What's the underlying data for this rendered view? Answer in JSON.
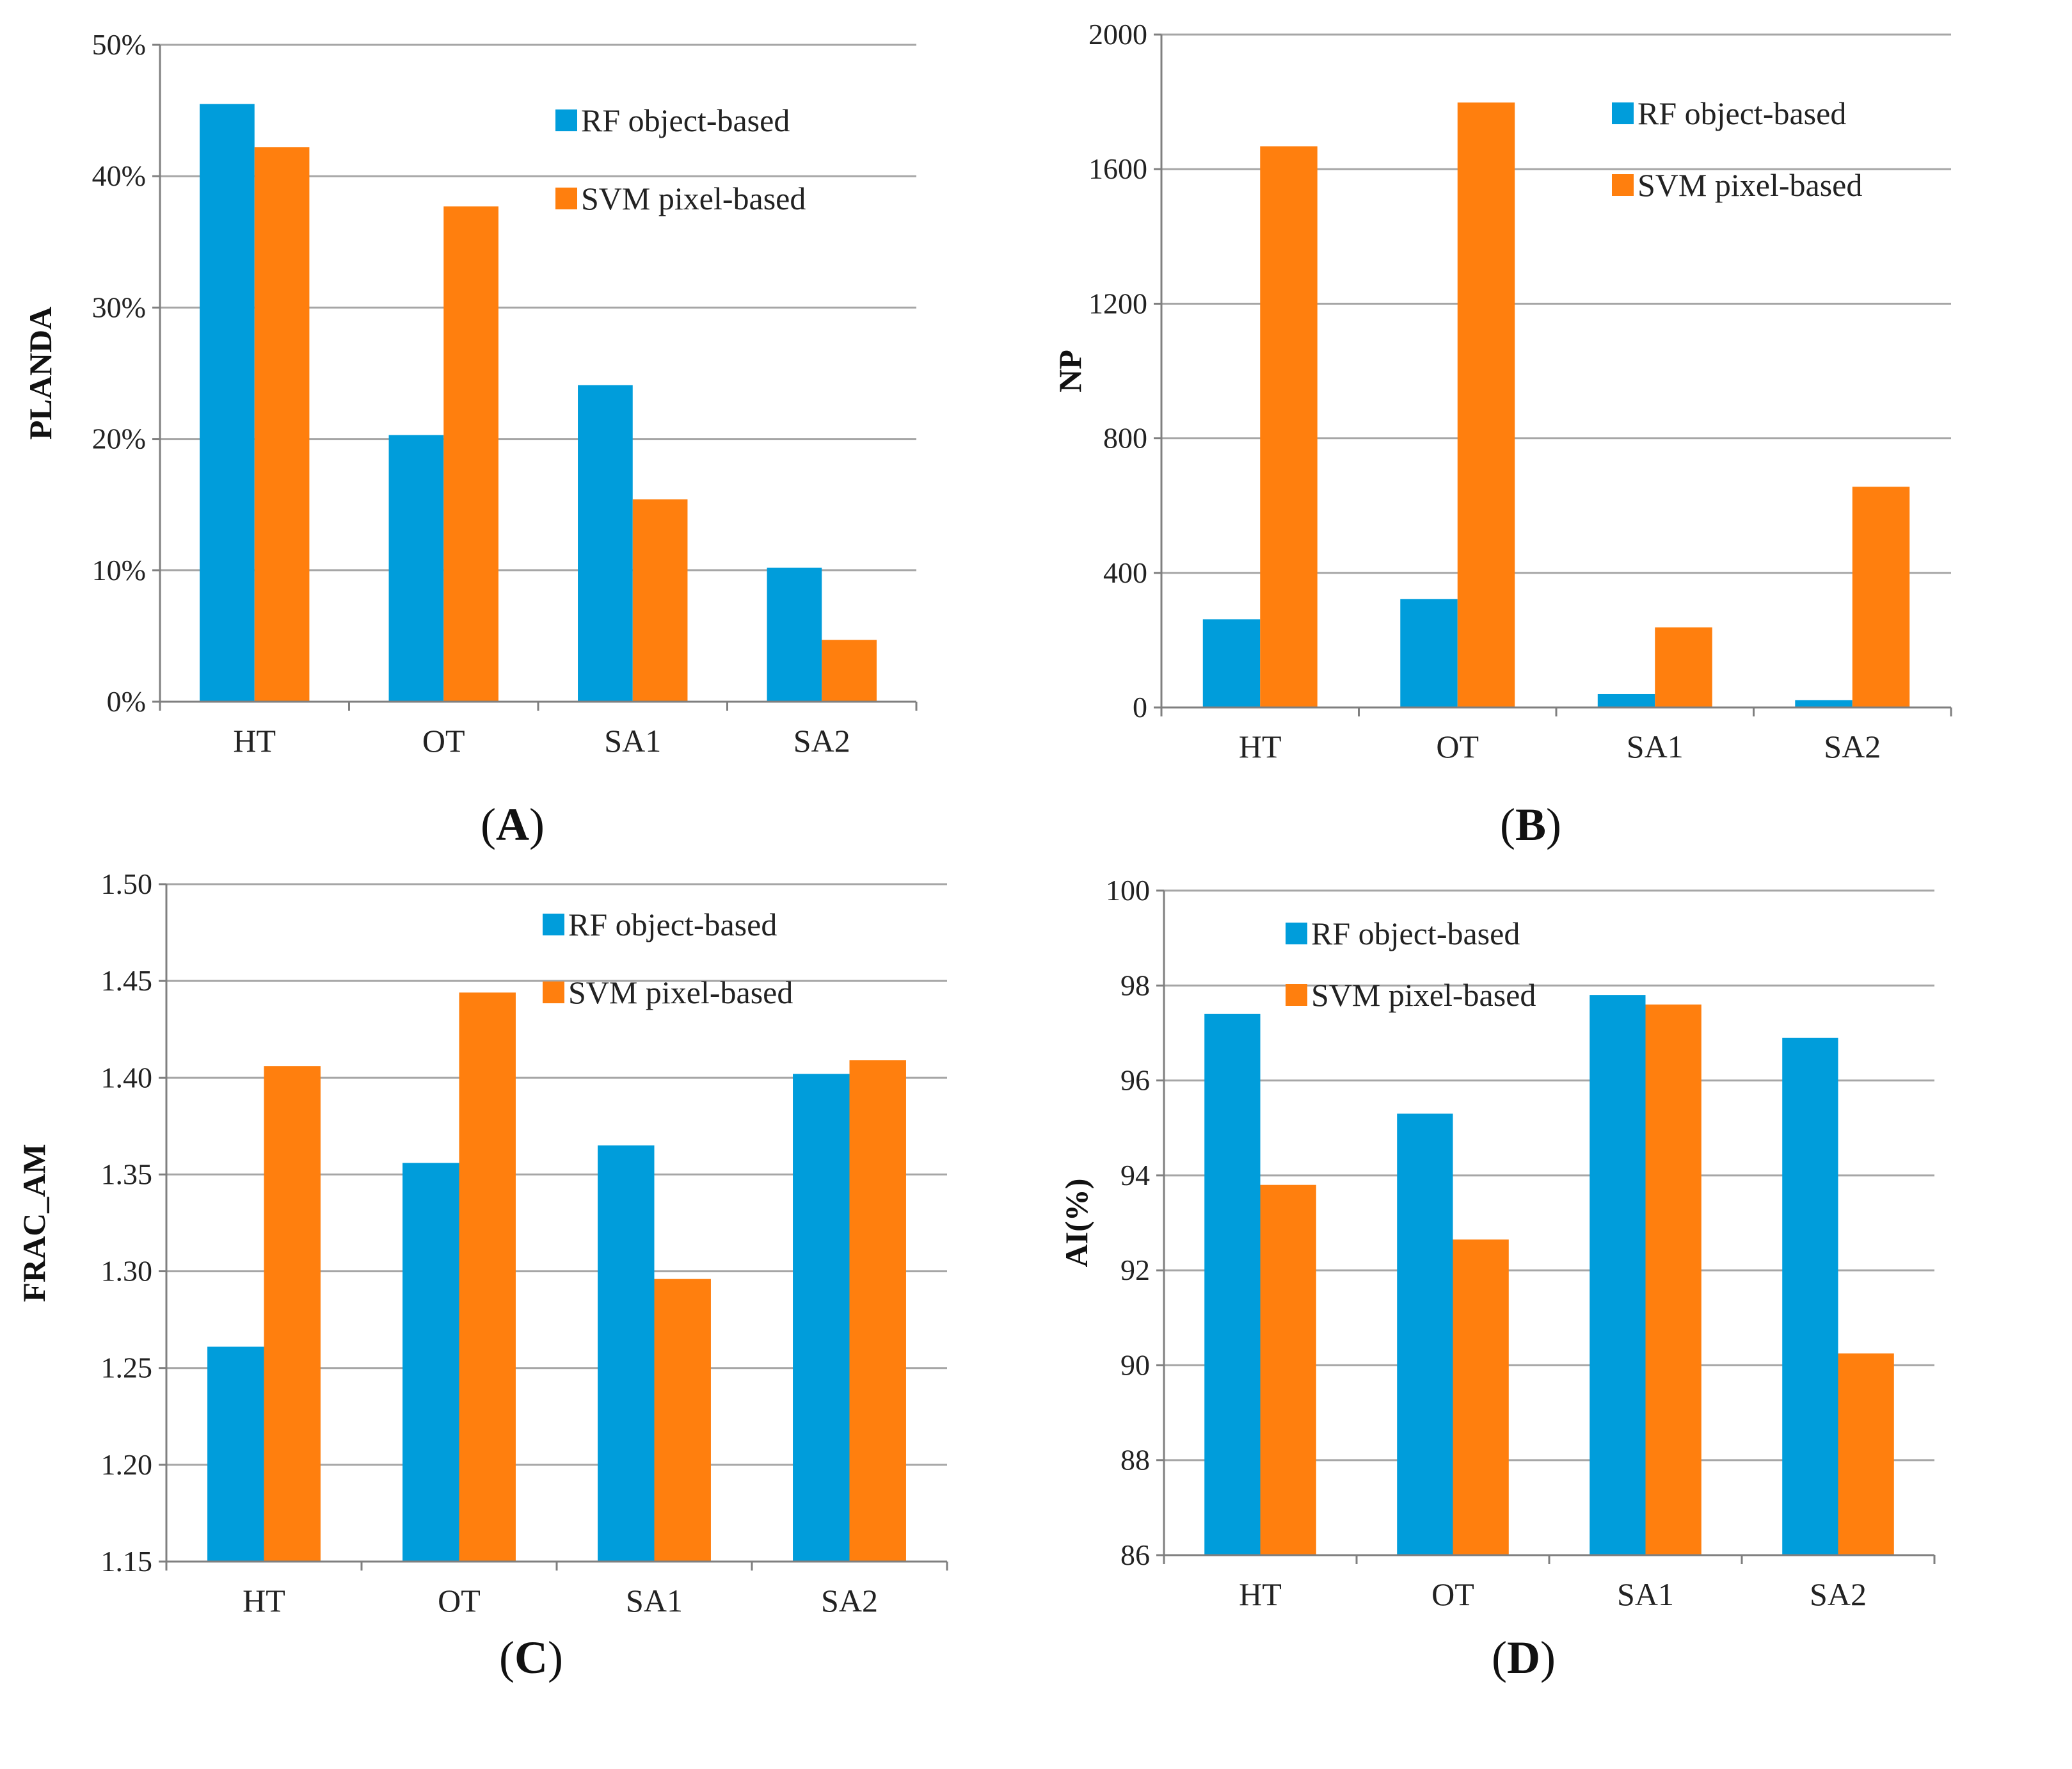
{
  "chart_data": [
    {
      "id": "A",
      "type": "bar",
      "panel_label": "A",
      "ylabel": "PLANDA",
      "categories": [
        "HT",
        "OT",
        "SA1",
        "SA2"
      ],
      "series": [
        {
          "name": "RF object-based",
          "values": [
            45.5,
            20.3,
            24.1,
            10.2
          ]
        },
        {
          "name": "SVM pixel-based",
          "values": [
            42.2,
            37.7,
            15.4,
            4.7
          ]
        }
      ],
      "ylim": [
        0,
        50
      ],
      "yticks": [
        0,
        10,
        20,
        30,
        40,
        50
      ],
      "ytick_labels": [
        "0%",
        "10%",
        "20%",
        "30%",
        "40%",
        "50%"
      ],
      "legend_position": "upper-center-right",
      "grid": true
    },
    {
      "id": "B",
      "type": "bar",
      "panel_label": "B",
      "ylabel": "NP",
      "categories": [
        "HT",
        "OT",
        "SA1",
        "SA2"
      ],
      "series": [
        {
          "name": "RF object-based",
          "values": [
            262,
            322,
            40,
            22
          ]
        },
        {
          "name": "SVM pixel-based",
          "values": [
            1668,
            1798,
            238,
            656
          ]
        }
      ],
      "ylim": [
        0,
        2000
      ],
      "yticks": [
        0,
        400,
        800,
        1200,
        1600,
        2000
      ],
      "ytick_labels": [
        "0",
        "400",
        "800",
        "1200",
        "1600",
        "2000"
      ],
      "legend_position": "upper-center-right",
      "grid": true
    },
    {
      "id": "C",
      "type": "bar",
      "panel_label": "C",
      "ylabel": "FRAC_AM",
      "categories": [
        "HT",
        "OT",
        "SA1",
        "SA2"
      ],
      "series": [
        {
          "name": "RF object-based",
          "values": [
            1.261,
            1.356,
            1.365,
            1.402
          ]
        },
        {
          "name": "SVM pixel-based",
          "values": [
            1.406,
            1.444,
            1.296,
            1.409
          ]
        }
      ],
      "ylim": [
        1.15,
        1.5
      ],
      "yticks": [
        1.15,
        1.2,
        1.25,
        1.3,
        1.35,
        1.4,
        1.45,
        1.5
      ],
      "ytick_labels": [
        "1.15",
        "1.20",
        "1.25",
        "1.30",
        "1.35",
        "1.40",
        "1.45",
        "1.50"
      ],
      "legend_position": "upper-center-right",
      "grid": true
    },
    {
      "id": "D",
      "type": "bar",
      "panel_label": "D",
      "ylabel": "AI(%)",
      "categories": [
        "HT",
        "OT",
        "SA1",
        "SA2"
      ],
      "series": [
        {
          "name": "RF object-based",
          "values": [
            97.4,
            95.3,
            97.8,
            96.9
          ]
        },
        {
          "name": "SVM pixel-based",
          "values": [
            93.8,
            92.65,
            97.6,
            90.25
          ]
        }
      ],
      "ylim": [
        86,
        100
      ],
      "yticks": [
        86,
        88,
        90,
        92,
        94,
        96,
        98,
        100
      ],
      "ytick_labels": [
        "86",
        "88",
        "90",
        "92",
        "94",
        "96",
        "98",
        "100"
      ],
      "legend_position": "upper-center",
      "grid": true
    }
  ],
  "colors": {
    "rf": "#009ddb",
    "svm": "#ff7f0e"
  }
}
